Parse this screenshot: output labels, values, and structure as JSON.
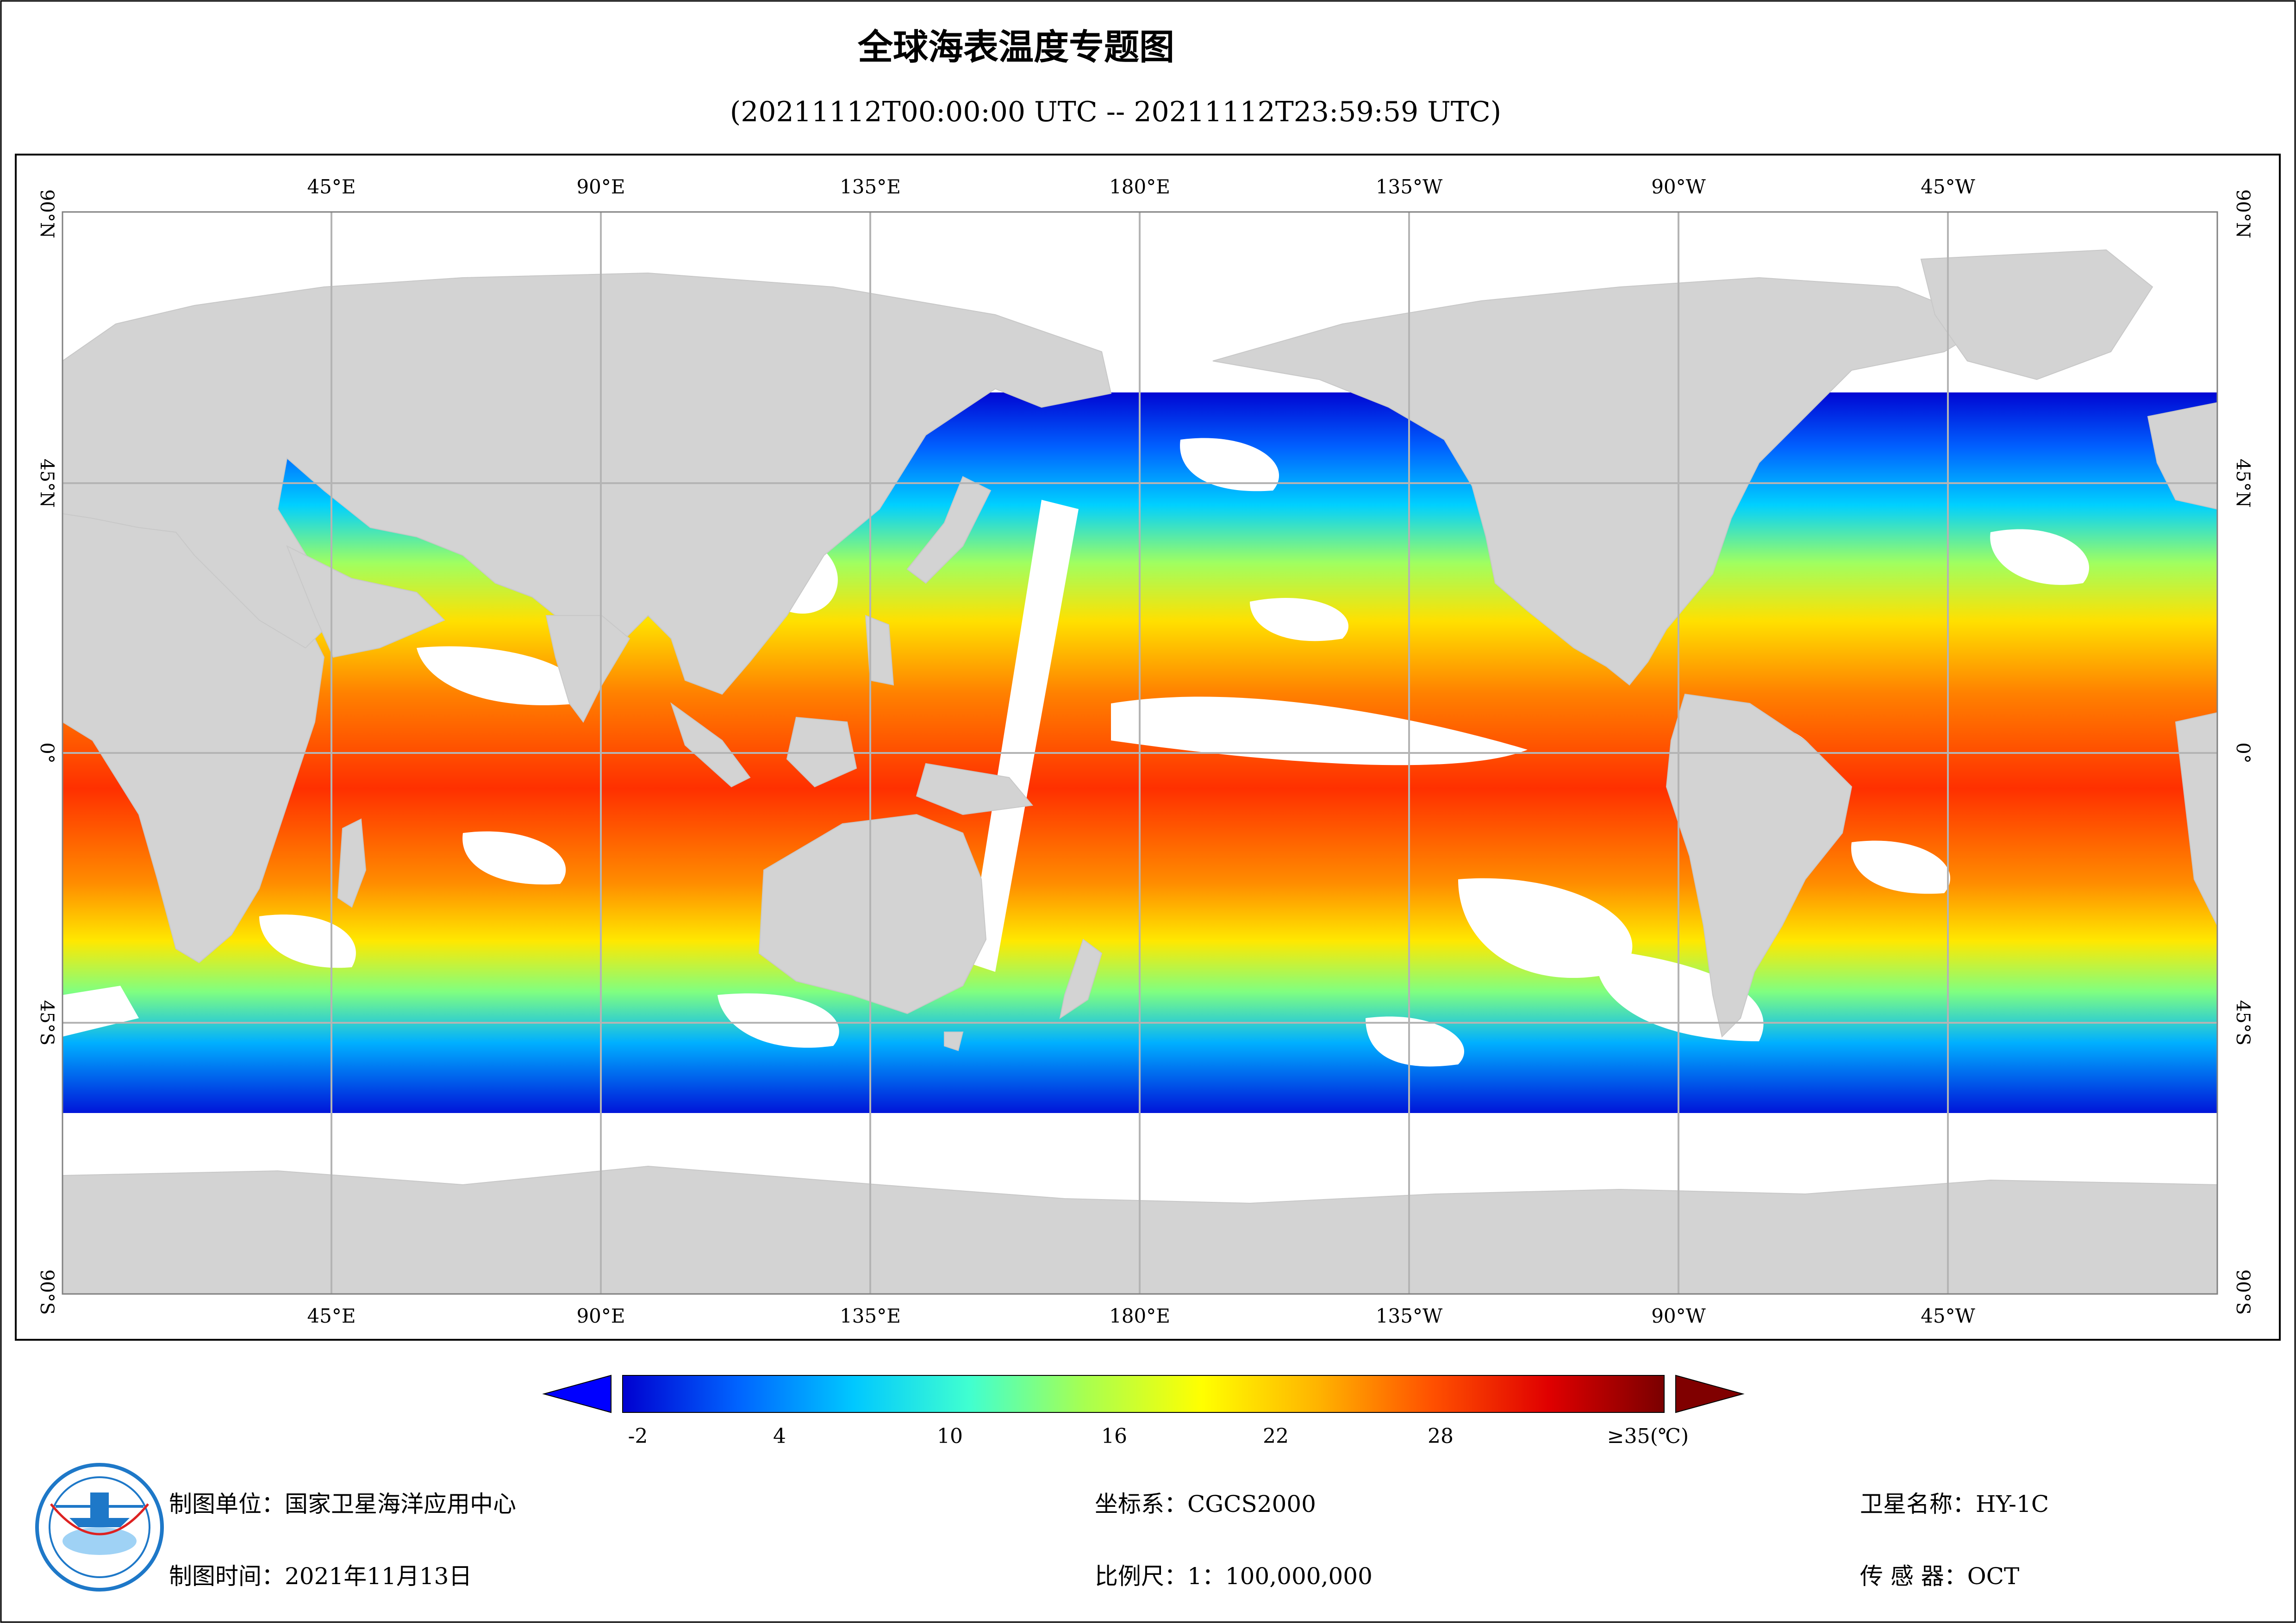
{
  "title": "全球海表温度专题图",
  "time_range": "(20211112T00:00:00 UTC -- 20211112T23:59:59 UTC)",
  "map": {
    "lon_labels_top": [
      "45°E",
      "90°E",
      "135°E",
      "180°E",
      "135°W",
      "90°W",
      "45°W"
    ],
    "lon_labels_bottom": [
      "45°E",
      "90°E",
      "135°E",
      "180°E",
      "135°W",
      "90°W",
      "45°W"
    ],
    "lat_labels_left": [
      "90°N",
      "45°N",
      "0°",
      "45°S",
      "90°S"
    ],
    "lat_labels_right": [
      "90°N",
      "45°N",
      "0°",
      "45°S",
      "90°S"
    ],
    "colors": {
      "land": "#d3d3d3",
      "cloud": "#ffffff",
      "grid": "#b4b4b4",
      "frame": "#000000"
    }
  },
  "colorbar": {
    "ticks": [
      "-2",
      "4",
      "10",
      "16",
      "22",
      "28",
      "≥35(℃)"
    ],
    "min": -2,
    "max": 35,
    "unit": "℃",
    "palette": [
      "#0000d0",
      "#0064ff",
      "#00c8ff",
      "#40ffd0",
      "#a8ff50",
      "#ffff00",
      "#ffb400",
      "#ff5000",
      "#e00000",
      "#7a0000"
    ],
    "under_color": "#0000ff",
    "over_color": "#800000"
  },
  "footer": {
    "org": "制图单位：国家卫星海洋应用中心",
    "date": "制图时间：2021年11月13日",
    "crs": "坐标系：CGCS2000",
    "scale": "比例尺：1：100,000,000",
    "satellite": "卫星名称：HY-1C",
    "sensor": "传 感 器：OCT",
    "logo_icon": "nsoas-logo-icon"
  }
}
